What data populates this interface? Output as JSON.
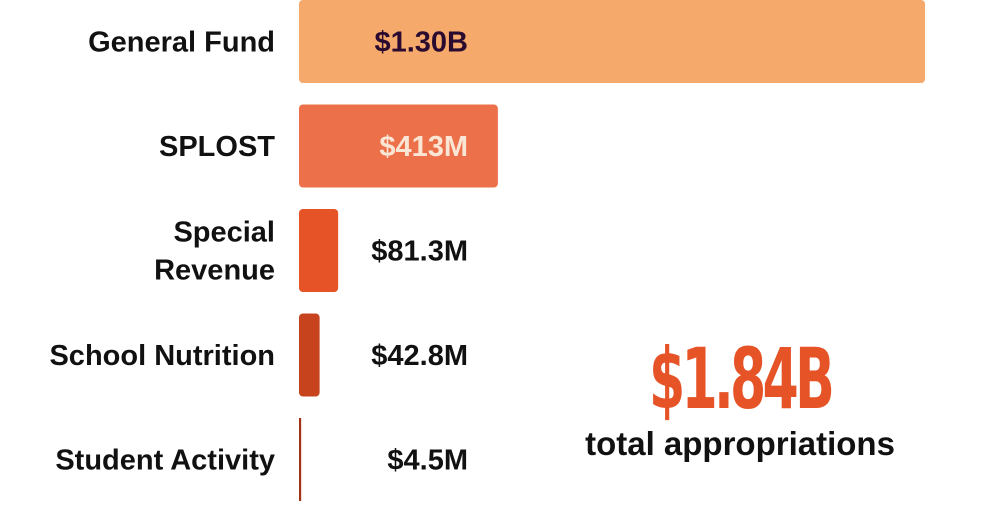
{
  "chart_data": {
    "type": "bar",
    "orientation": "horizontal",
    "categories": [
      "General Fund",
      "SPLOST",
      "Special Revenue",
      "School Nutrition",
      "Student Activity"
    ],
    "values": [
      1300,
      413,
      81.3,
      42.8,
      4.5
    ],
    "units": "millions of dollars",
    "value_labels": [
      "$1.30B",
      "$413M",
      "$81.3M",
      "$42.8M",
      "$4.5M"
    ],
    "bar_colors": [
      "#F5A96B",
      "#EC714B",
      "#E65326",
      "#C7431D",
      "#A33217"
    ],
    "value_label_colors": [
      "#2A0A2E",
      "#FBE6D6",
      "#111111",
      "#111111",
      "#111111"
    ],
    "title": "",
    "xlabel": "",
    "ylabel": "",
    "grid": false,
    "legend": "none"
  },
  "summary": {
    "total": "$1.84B",
    "caption": "total appropriations",
    "total_color": "#E65326"
  }
}
